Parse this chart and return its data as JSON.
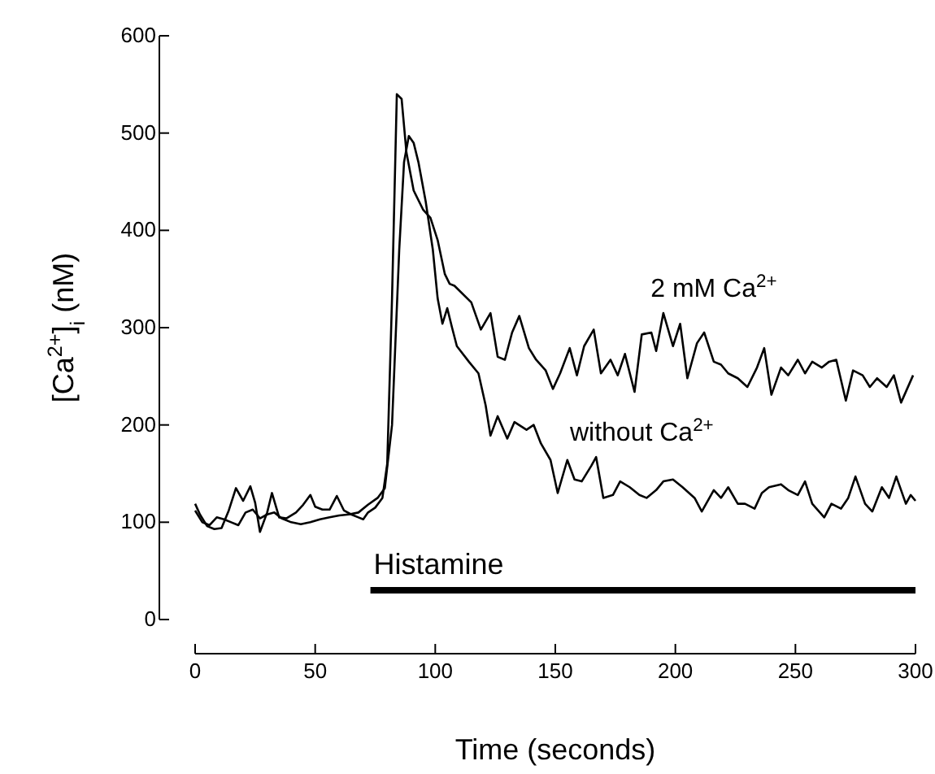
{
  "chart_data": {
    "type": "line",
    "xlabel": "Time (seconds)",
    "ylabel": "[Ca$^{2+}$]$_{i}$ (nM)",
    "xlim": [
      0,
      300
    ],
    "xticks": [
      0,
      50,
      100,
      150,
      200,
      250,
      300
    ],
    "ylim": [
      0,
      600
    ],
    "yticks": [
      0,
      100,
      200,
      300,
      400,
      500,
      600
    ],
    "marker": "none",
    "line_style": "solid",
    "annotations": [
      "Histamine"
    ],
    "series": [
      {
        "color": "#000000",
        "x": [
          73,
          300
        ],
        "values": [
          30,
          30
        ]
      },
      {
        "name": "2 mM Ca$^{2+}$",
        "color": "#000000",
        "x": [
          0,
          2,
          5,
          8,
          11,
          14,
          17,
          20,
          23,
          25,
          27,
          30,
          32,
          35,
          38,
          42,
          45,
          48,
          50,
          53,
          56,
          59,
          62,
          65,
          68,
          70,
          72,
          75,
          78,
          80,
          82,
          84,
          86,
          88,
          91,
          95,
          98,
          101,
          104,
          106,
          108,
          115,
          119,
          123,
          126,
          129,
          132,
          135,
          139,
          142,
          146,
          149,
          152,
          156,
          159,
          162,
          166,
          169,
          173,
          176,
          179,
          183,
          186,
          190,
          192,
          195,
          199,
          202,
          205,
          209,
          212,
          216,
          219,
          222,
          226,
          230,
          234,
          237,
          240,
          244,
          247,
          251,
          254,
          257,
          261,
          264,
          267,
          271,
          274,
          278,
          281,
          284,
          288,
          291,
          294,
          299
        ],
        "values": [
          119,
          108,
          96,
          93,
          94,
          112,
          135,
          122,
          137,
          120,
          90,
          110,
          130,
          105,
          104,
          110,
          118,
          128,
          116,
          113,
          113,
          127,
          112,
          108,
          105,
          103,
          110,
          115,
          125,
          160,
          330,
          540,
          535,
          480,
          441,
          421,
          413,
          390,
          355,
          345,
          343,
          326,
          298,
          315,
          270,
          267,
          295,
          312,
          279,
          267,
          256,
          237,
          253,
          279,
          251,
          281,
          298,
          253,
          267,
          251,
          273,
          234,
          293,
          295,
          276,
          315,
          281,
          304,
          248,
          284,
          295,
          265,
          262,
          253,
          248,
          239,
          259,
          279,
          231,
          259,
          251,
          267,
          253,
          265,
          259,
          265,
          267,
          225,
          256,
          251,
          239,
          248,
          239,
          251,
          223,
          251
        ]
      },
      {
        "name": "without Ca$^{2+}$",
        "color": "#000000",
        "x": [
          0,
          3,
          6,
          9,
          12,
          15,
          18,
          21,
          24,
          27,
          30,
          33,
          36,
          40,
          44,
          48,
          52,
          56,
          60,
          64,
          68,
          72,
          76,
          79,
          82,
          85,
          87,
          89,
          91,
          93,
          96,
          99,
          101,
          103,
          105,
          107,
          109,
          114,
          118,
          121,
          123,
          126,
          130,
          133,
          138,
          141,
          144,
          148,
          151,
          155,
          158,
          161,
          165,
          167,
          170,
          174,
          177,
          181,
          185,
          188,
          192,
          195,
          199,
          203,
          208,
          211,
          216,
          219,
          222,
          226,
          229,
          233,
          236,
          239,
          244,
          247,
          251,
          254,
          257,
          262,
          265,
          269,
          272,
          275,
          279,
          282,
          286,
          289,
          292,
          296,
          298,
          300
        ],
        "values": [
          112,
          100,
          97,
          105,
          103,
          100,
          97,
          110,
          113,
          104,
          108,
          110,
          104,
          100,
          98,
          100,
          103,
          105,
          107,
          108,
          110,
          118,
          125,
          135,
          200,
          380,
          470,
          497,
          490,
          470,
          430,
          380,
          330,
          304,
          320,
          300,
          281,
          265,
          253,
          220,
          189,
          209,
          186,
          203,
          195,
          200,
          181,
          164,
          130,
          164,
          144,
          142,
          158,
          167,
          125,
          128,
          142,
          136,
          128,
          125,
          133,
          142,
          144,
          136,
          125,
          111,
          133,
          125,
          136,
          119,
          119,
          114,
          130,
          136,
          139,
          133,
          128,
          142,
          119,
          105,
          119,
          114,
          125,
          147,
          119,
          111,
          136,
          125,
          147,
          119,
          128,
          122
        ]
      }
    ]
  }
}
